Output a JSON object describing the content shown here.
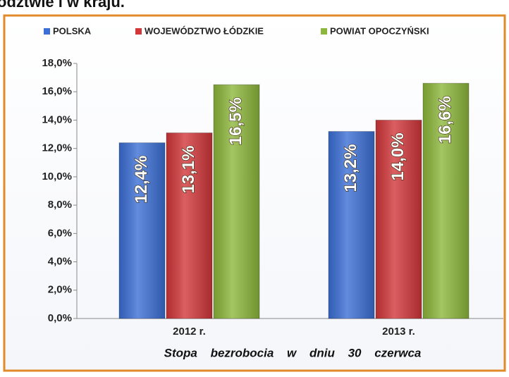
{
  "heading": "odztwie i w kraju.",
  "chart_data": {
    "type": "bar",
    "categories": [
      "2012 r.",
      "2013 r."
    ],
    "series": [
      {
        "name": "POLSKA",
        "color": "#3b6fd6",
        "values": [
          12.4,
          13.2
        ],
        "value_labels": [
          "12,4%",
          "13,2%"
        ]
      },
      {
        "name": "WOJEWÓDZTWO ŁÓDZKIE",
        "color": "#d2373a",
        "values": [
          13.1,
          14.0
        ],
        "value_labels": [
          "13,1%",
          "14,0%"
        ]
      },
      {
        "name": "POWIAT OPOCZYŃSKI",
        "color": "#8db73b",
        "values": [
          16.5,
          16.6
        ],
        "value_labels": [
          "16,5%",
          "16,6%"
        ]
      }
    ],
    "x_label": "Stopa bezrobocia w dniu 30 czerwca",
    "ylim": [
      0,
      18
    ],
    "yticks": [
      {
        "value": 0,
        "label": "0,0%"
      },
      {
        "value": 2,
        "label": "2,0%"
      },
      {
        "value": 4,
        "label": "4,0%"
      },
      {
        "value": 6,
        "label": "6,0%"
      },
      {
        "value": 8,
        "label": "8,0%"
      },
      {
        "value": 10,
        "label": "10,0%"
      },
      {
        "value": 12,
        "label": "12,0%"
      },
      {
        "value": 14,
        "label": "14,0%"
      },
      {
        "value": 16,
        "label": "16,0%"
      },
      {
        "value": 18,
        "label": "18,0%"
      }
    ],
    "legend": "top"
  }
}
